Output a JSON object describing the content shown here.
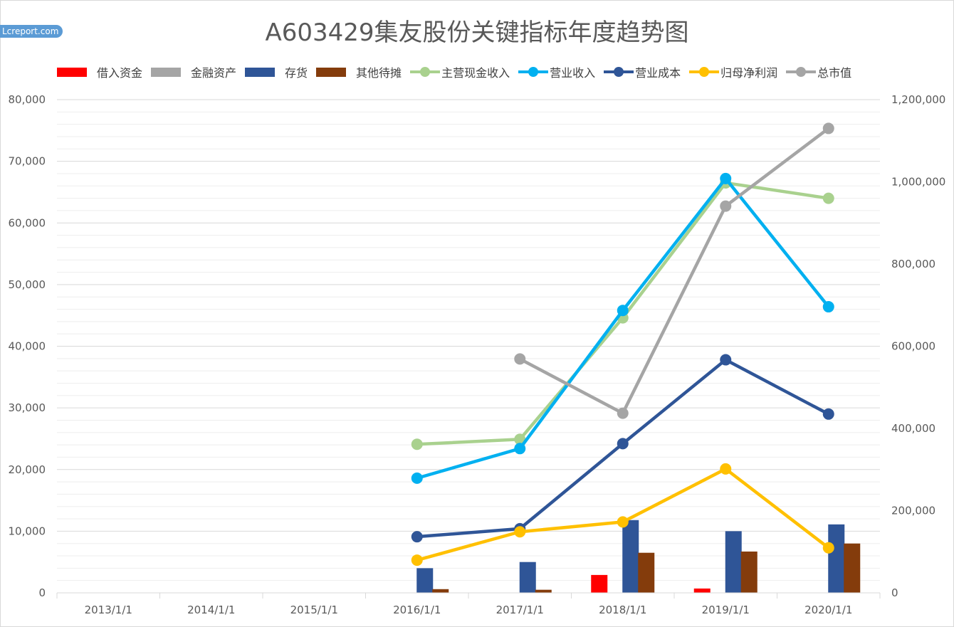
{
  "watermark": "Lcreport.com",
  "chart_data": {
    "type": "bar+line",
    "title": "A603429集友股份关键指标年度趋势图",
    "categories": [
      "2013/1/1",
      "2014/1/1",
      "2015/1/1",
      "2016/1/1",
      "2017/1/1",
      "2018/1/1",
      "2019/1/1",
      "2020/1/1"
    ],
    "y_left": {
      "min": 0,
      "max": 80000,
      "ticks": [
        "0",
        "10,000",
        "20,000",
        "30,000",
        "40,000",
        "50,000",
        "60,000",
        "70,000",
        "80,000"
      ]
    },
    "y_right": {
      "min": 0,
      "max": 1200000,
      "ticks": [
        "0",
        "200,000",
        "400,000",
        "600,000",
        "800,000",
        "1,000,000",
        "1,200,000"
      ]
    },
    "grid": true,
    "legend_position": "top",
    "bar_series": [
      {
        "name": "借入资金",
        "color": "#ff0000",
        "axis": "left",
        "values": [
          null,
          null,
          null,
          null,
          null,
          2900,
          700,
          null
        ]
      },
      {
        "name": "金融资产",
        "color": "#a5a5a5",
        "axis": "left",
        "values": [
          null,
          null,
          null,
          null,
          null,
          null,
          null,
          null
        ]
      },
      {
        "name": "存货",
        "color": "#2f5597",
        "axis": "left",
        "values": [
          null,
          null,
          null,
          4000,
          5000,
          11800,
          10000,
          11100
        ]
      },
      {
        "name": "其他待摊",
        "color": "#843c0c",
        "axis": "left",
        "values": [
          null,
          null,
          null,
          600,
          500,
          6500,
          6700,
          8000
        ]
      }
    ],
    "line_series": [
      {
        "name": "主营现金收入",
        "color": "#a9d18e",
        "axis": "left",
        "values": [
          null,
          null,
          null,
          24100,
          24900,
          44600,
          66500,
          64000
        ]
      },
      {
        "name": "营业收入",
        "color": "#00b0f0",
        "axis": "left",
        "values": [
          null,
          null,
          null,
          18600,
          23400,
          45800,
          67200,
          46400
        ]
      },
      {
        "name": "营业成本",
        "color": "#2f5597",
        "axis": "left",
        "values": [
          null,
          null,
          null,
          9100,
          10400,
          24200,
          37800,
          29000
        ]
      },
      {
        "name": "归母净利润",
        "color": "#ffc000",
        "axis": "left",
        "values": [
          null,
          null,
          null,
          5300,
          9900,
          11500,
          20100,
          7300
        ]
      },
      {
        "name": "总市值",
        "color": "#a5a5a5",
        "axis": "right",
        "values": [
          null,
          null,
          null,
          null,
          569000,
          437000,
          941000,
          1130000
        ]
      }
    ]
  }
}
